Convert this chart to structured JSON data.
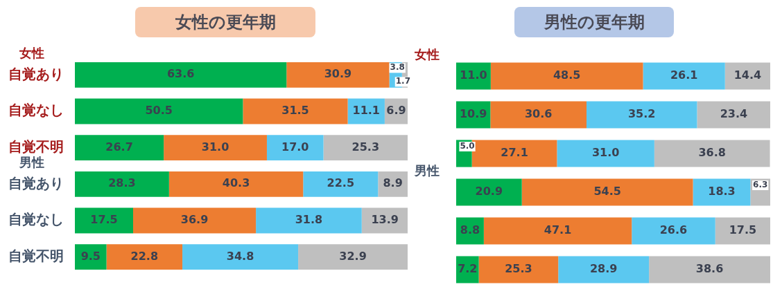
{
  "chart_data": [
    {
      "type": "bar",
      "title": "女性の更年期",
      "orientation": "horizontal",
      "stacked": true,
      "legend": false,
      "tick_labels": "y",
      "xlim": [
        0,
        100
      ],
      "categories": [
        "自覚あり",
        "自覚なし",
        "自覚不明",
        "自覚あり",
        "自覚なし",
        "自覚不明"
      ],
      "annotations": [
        "女性",
        "男性"
      ],
      "series": [
        {
          "color": "#00b050",
          "values": [
            63.6,
            50.5,
            26.7,
            28.3,
            17.5,
            9.5
          ],
          "value_labels": [
            "63.6",
            "50.5",
            "26.7",
            "28.3",
            "17.5",
            "9.5"
          ]
        },
        {
          "color": "#ed7d31",
          "values": [
            30.9,
            31.5,
            31.0,
            40.3,
            36.9,
            22.8
          ],
          "value_labels": [
            "30.9",
            "31.5",
            "31.0",
            "40.3",
            "36.9",
            "22.8"
          ]
        },
        {
          "color": "#5bc8f0",
          "values": [
            3.8,
            11.1,
            17.0,
            22.5,
            31.8,
            34.8
          ],
          "value_labels": [
            "3.8",
            "11.1",
            "17.0",
            "22.5",
            "31.8",
            "34.8"
          ]
        },
        {
          "color": "#bfbfbf",
          "values": [
            1.7,
            6.9,
            25.3,
            8.9,
            13.9,
            32.9
          ],
          "value_labels": [
            "1.7",
            "6.9",
            "25.3",
            "8.9",
            "13.9",
            "32.9"
          ]
        }
      ]
    },
    {
      "type": "bar",
      "title": "男性の更年期",
      "orientation": "horizontal",
      "stacked": true,
      "legend": false,
      "tick_labels": false,
      "xlim": [
        0,
        100
      ],
      "categories": [
        null,
        null,
        null,
        null,
        null,
        null
      ],
      "annotations": [
        "女性",
        "男性"
      ],
      "series": [
        {
          "color": "#00b050",
          "values": [
            11.0,
            10.9,
            5.0,
            20.9,
            8.8,
            7.2
          ],
          "value_labels": [
            "11.0",
            "10.9",
            "5.0",
            "20.9",
            "8.8",
            "7.2"
          ]
        },
        {
          "color": "#ed7d31",
          "values": [
            48.5,
            30.6,
            27.1,
            54.5,
            47.1,
            25.3
          ],
          "value_labels": [
            "48.5",
            "30.6",
            "27.1",
            "54.5",
            "47.1",
            "25.3"
          ]
        },
        {
          "color": "#5bc8f0",
          "values": [
            26.1,
            35.2,
            31.0,
            18.3,
            26.6,
            28.9
          ],
          "value_labels": [
            "26.1",
            "35.2",
            "31.0",
            "18.3",
            "26.6",
            "28.9"
          ]
        },
        {
          "color": "#bfbfbf",
          "values": [
            14.4,
            23.4,
            36.8,
            6.3,
            17.5,
            38.6
          ],
          "value_labels": [
            "14.4",
            "23.4",
            "36.8",
            "6.3",
            "17.5",
            "38.6"
          ]
        }
      ]
    }
  ]
}
